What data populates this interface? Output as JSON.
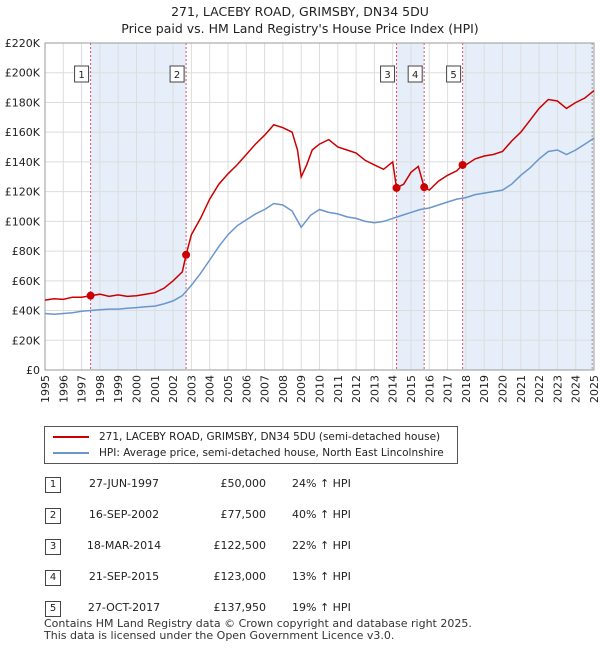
{
  "title": {
    "line1": "271, LACEBY ROAD, GRIMSBY, DN34 5DU",
    "line2": "Price paid vs. HM Land Registry's House Price Index (HPI)"
  },
  "legend": {
    "property_label": "271, LACEBY ROAD, GRIMSBY, DN34 5DU (semi-detached house)",
    "hpi_label": "HPI: Average price, semi-detached house, North East Lincolnshire"
  },
  "colors": {
    "property": "#cc0000",
    "hpi": "#6a96cc",
    "shade": "#e6eefa",
    "grid": "#dddddd",
    "marker_line": "#dd5566"
  },
  "transactions": [
    {
      "num": "1",
      "date": "27-JUN-1997",
      "price": "£50,000",
      "hpi": "24% ↑ HPI"
    },
    {
      "num": "2",
      "date": "16-SEP-2002",
      "price": "£77,500",
      "hpi": "40% ↑ HPI"
    },
    {
      "num": "3",
      "date": "18-MAR-2014",
      "price": "£122,500",
      "hpi": "22% ↑ HPI"
    },
    {
      "num": "4",
      "date": "21-SEP-2015",
      "price": "£123,000",
      "hpi": "13% ↑ HPI"
    },
    {
      "num": "5",
      "date": "27-OCT-2017",
      "price": "£137,950",
      "hpi": "19% ↑ HPI"
    }
  ],
  "footer": {
    "line1": "Contains HM Land Registry data © Crown copyright and database right 2025.",
    "line2": "This data is licensed under the Open Government Licence v3.0."
  },
  "chart_data": {
    "type": "line",
    "title": "271, LACEBY ROAD, GRIMSBY, DN34 5DU — Price paid vs. HM Land Registry's House Price Index (HPI)",
    "xlabel": "",
    "ylabel": "",
    "xlim": [
      1995,
      2025
    ],
    "ylim": [
      0,
      220000
    ],
    "x_ticks": [
      "1995",
      "1996",
      "1997",
      "1998",
      "1999",
      "2000",
      "2001",
      "2002",
      "2003",
      "2004",
      "2005",
      "2006",
      "2007",
      "2008",
      "2009",
      "2010",
      "2011",
      "2012",
      "2013",
      "2014",
      "2015",
      "2016",
      "2017",
      "2018",
      "2019",
      "2020",
      "2021",
      "2022",
      "2023",
      "2024",
      "2025"
    ],
    "y_ticks": [
      {
        "value": 0,
        "label": "£0"
      },
      {
        "value": 20000,
        "label": "£20K"
      },
      {
        "value": 40000,
        "label": "£40K"
      },
      {
        "value": 60000,
        "label": "£60K"
      },
      {
        "value": 80000,
        "label": "£80K"
      },
      {
        "value": 100000,
        "label": "£100K"
      },
      {
        "value": 120000,
        "label": "£120K"
      },
      {
        "value": 140000,
        "label": "£140K"
      },
      {
        "value": 160000,
        "label": "£160K"
      },
      {
        "value": 180000,
        "label": "£180K"
      },
      {
        "value": 200000,
        "label": "£200K"
      },
      {
        "value": 220000,
        "label": "£220K"
      }
    ],
    "grid": true,
    "shaded_periods": [
      [
        1997.49,
        2002.71
      ],
      [
        2014.21,
        2015.72
      ],
      [
        2017.82,
        2024.95
      ]
    ],
    "sale_markers": [
      {
        "num": "1",
        "x": 1997.49,
        "y": 50000
      },
      {
        "num": "2",
        "x": 2002.71,
        "y": 77500
      },
      {
        "num": "3",
        "x": 2014.21,
        "y": 122500
      },
      {
        "num": "4",
        "x": 2015.72,
        "y": 123000
      },
      {
        "num": "5",
        "x": 2017.82,
        "y": 137950
      }
    ],
    "series": [
      {
        "name": "271, LACEBY ROAD, GRIMSBY, DN34 5DU (semi-detached house)",
        "color": "#cc0000",
        "points": [
          [
            1995,
            47000
          ],
          [
            1995.5,
            48000
          ],
          [
            1996,
            47500
          ],
          [
            1996.5,
            49000
          ],
          [
            1997,
            49000
          ],
          [
            1997.49,
            50000
          ],
          [
            1998,
            51000
          ],
          [
            1998.5,
            49500
          ],
          [
            1999,
            50500
          ],
          [
            1999.5,
            49500
          ],
          [
            2000,
            50000
          ],
          [
            2000.5,
            51000
          ],
          [
            2001,
            52000
          ],
          [
            2001.5,
            55000
          ],
          [
            2002,
            60000
          ],
          [
            2002.5,
            66000
          ],
          [
            2002.71,
            77500
          ],
          [
            2003,
            91000
          ],
          [
            2003.5,
            102000
          ],
          [
            2004,
            115000
          ],
          [
            2004.5,
            125000
          ],
          [
            2005,
            132000
          ],
          [
            2005.5,
            138000
          ],
          [
            2006,
            145000
          ],
          [
            2006.5,
            152000
          ],
          [
            2007,
            158000
          ],
          [
            2007.5,
            165000
          ],
          [
            2008,
            163000
          ],
          [
            2008.5,
            160000
          ],
          [
            2008.8,
            148000
          ],
          [
            2009,
            130000
          ],
          [
            2009.3,
            138000
          ],
          [
            2009.6,
            148000
          ],
          [
            2010,
            152000
          ],
          [
            2010.5,
            155000
          ],
          [
            2011,
            150000
          ],
          [
            2011.5,
            148000
          ],
          [
            2012,
            146000
          ],
          [
            2012.5,
            141000
          ],
          [
            2013,
            138000
          ],
          [
            2013.5,
            135000
          ],
          [
            2014,
            140000
          ],
          [
            2014.21,
            122500
          ],
          [
            2014.6,
            125000
          ],
          [
            2015,
            133000
          ],
          [
            2015.4,
            137000
          ],
          [
            2015.72,
            123000
          ],
          [
            2016,
            121000
          ],
          [
            2016.5,
            127000
          ],
          [
            2017,
            131000
          ],
          [
            2017.5,
            134000
          ],
          [
            2017.82,
            137950
          ],
          [
            2018,
            138000
          ],
          [
            2018.5,
            142000
          ],
          [
            2019,
            144000
          ],
          [
            2019.5,
            145000
          ],
          [
            2020,
            147000
          ],
          [
            2020.5,
            154000
          ],
          [
            2021,
            160000
          ],
          [
            2021.5,
            168000
          ],
          [
            2022,
            176000
          ],
          [
            2022.5,
            182000
          ],
          [
            2023,
            181000
          ],
          [
            2023.5,
            176000
          ],
          [
            2024,
            180000
          ],
          [
            2024.5,
            183000
          ],
          [
            2025,
            188000
          ]
        ]
      },
      {
        "name": "HPI: Average price, semi-detached house, North East Lincolnshire",
        "color": "#6a96cc",
        "points": [
          [
            1995,
            38000
          ],
          [
            1995.5,
            37500
          ],
          [
            1996,
            38000
          ],
          [
            1996.5,
            38500
          ],
          [
            1997,
            39500
          ],
          [
            1997.5,
            40000
          ],
          [
            1998,
            40500
          ],
          [
            1998.5,
            41000
          ],
          [
            1999,
            41000
          ],
          [
            1999.5,
            41500
          ],
          [
            2000,
            42000
          ],
          [
            2000.5,
            42500
          ],
          [
            2001,
            43000
          ],
          [
            2001.5,
            44500
          ],
          [
            2002,
            46500
          ],
          [
            2002.5,
            50000
          ],
          [
            2003,
            57000
          ],
          [
            2003.5,
            65000
          ],
          [
            2004,
            74000
          ],
          [
            2004.5,
            83000
          ],
          [
            2005,
            91000
          ],
          [
            2005.5,
            97000
          ],
          [
            2006,
            101000
          ],
          [
            2006.5,
            105000
          ],
          [
            2007,
            108000
          ],
          [
            2007.5,
            112000
          ],
          [
            2008,
            111000
          ],
          [
            2008.5,
            107000
          ],
          [
            2009,
            96000
          ],
          [
            2009.5,
            104000
          ],
          [
            2010,
            108000
          ],
          [
            2010.5,
            106000
          ],
          [
            2011,
            105000
          ],
          [
            2011.5,
            103000
          ],
          [
            2012,
            102000
          ],
          [
            2012.5,
            100000
          ],
          [
            2013,
            99000
          ],
          [
            2013.5,
            100000
          ],
          [
            2014,
            102000
          ],
          [
            2014.5,
            104000
          ],
          [
            2015,
            106000
          ],
          [
            2015.5,
            108000
          ],
          [
            2016,
            109000
          ],
          [
            2016.5,
            111000
          ],
          [
            2017,
            113000
          ],
          [
            2017.5,
            115000
          ],
          [
            2018,
            116000
          ],
          [
            2018.5,
            118000
          ],
          [
            2019,
            119000
          ],
          [
            2019.5,
            120000
          ],
          [
            2020,
            121000
          ],
          [
            2020.5,
            125000
          ],
          [
            2021,
            131000
          ],
          [
            2021.5,
            136000
          ],
          [
            2022,
            142000
          ],
          [
            2022.5,
            147000
          ],
          [
            2023,
            148000
          ],
          [
            2023.5,
            145000
          ],
          [
            2024,
            148000
          ],
          [
            2024.5,
            152000
          ],
          [
            2025,
            156000
          ]
        ]
      }
    ]
  }
}
